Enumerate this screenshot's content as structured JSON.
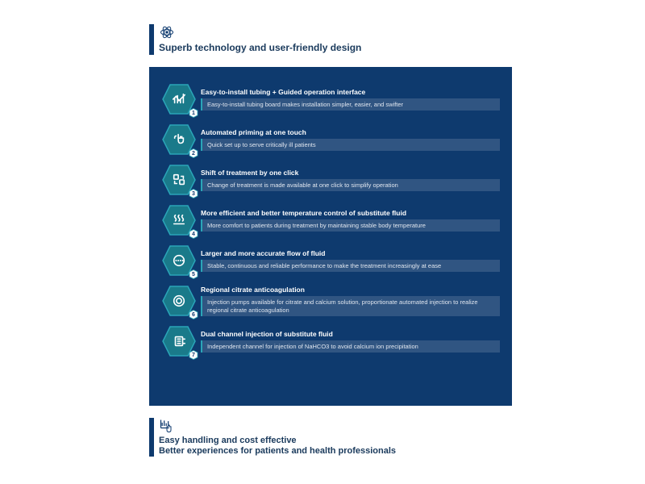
{
  "colors": {
    "accent_bar": "#0e3a6e",
    "panel_bg": "#0e3a6e",
    "hexagon_fill": "#1a7a8a",
    "hexagon_stroke": "#2aa5b8",
    "desc_bg": "rgba(255,255,255,0.14)",
    "desc_border": "#2aa5b8",
    "header_text": "#1a3a5c",
    "icon_color": "#0e3a6e",
    "white": "#ffffff"
  },
  "header": {
    "title": "Superb technology and user-friendly design"
  },
  "features": [
    {
      "num": "1",
      "title": "Easy-to-install tubing + Guided operation interface",
      "desc": "Easy-to-install tubing board makes installation simpler, easier, and swifter",
      "icon": "chart"
    },
    {
      "num": "2",
      "title": "Automated priming at one touch",
      "desc": "Quick set up to serve critically ill patients",
      "icon": "touch"
    },
    {
      "num": "3",
      "title": "Shift of treatment by one click",
      "desc": "Change of treatment is made available at one click to simplify operation",
      "icon": "squares"
    },
    {
      "num": "4",
      "title": "More efficient and better temperature control of substitute fluid",
      "desc": "More comfort to patients during treatment by maintaining stable body temperature",
      "icon": "heat"
    },
    {
      "num": "5",
      "title": "Larger and more accurate flow of fluid",
      "desc": "Stable, continuous and reliable performance to make the treatment increasingly at ease",
      "icon": "flow"
    },
    {
      "num": "6",
      "title": "Regional citrate anticoagulation",
      "desc": "Injection pumps available for citrate and calcium solution, proportionate automated injection to realize regional citrate anticoagulation",
      "icon": "circle"
    },
    {
      "num": "7",
      "title": "Dual channel injection of substitute fluid",
      "desc": "Independent channel for injection of NaHCO3 to avoid calcium ion precipitation",
      "icon": "channel"
    }
  ],
  "footer": {
    "line1": "Easy handling and cost effective",
    "line2": "Better experiences for patients and health professionals"
  }
}
